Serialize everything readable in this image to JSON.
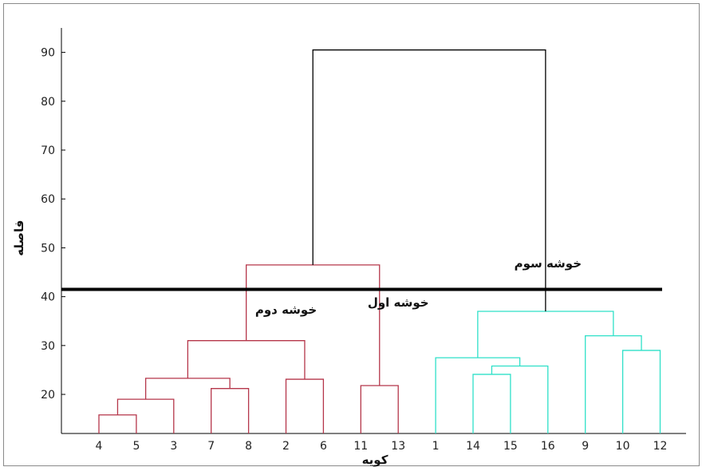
{
  "chart_data": {
    "type": "dendrogram",
    "xlabel": "کویه",
    "ylabel": "فاصله",
    "ylim": [
      12,
      95
    ],
    "yticks": [
      20,
      30,
      40,
      50,
      60,
      70,
      80,
      90
    ],
    "leaf_order": [
      "4",
      "5",
      "3",
      "7",
      "8",
      "2",
      "6",
      "11",
      "13",
      "1",
      "14",
      "15",
      "16",
      "9",
      "10",
      "12"
    ],
    "cut_height": 41.5,
    "colors": {
      "cluster_red": "#b5364a",
      "cluster_cyan": "#2ee0c8",
      "root": "#000000",
      "cut_line": "#000000"
    },
    "merges": [
      {
        "id": "m1",
        "children": [
          "4",
          "5"
        ],
        "height": 15.8,
        "color": "cluster_red"
      },
      {
        "id": "m2",
        "children": [
          "m1",
          "3"
        ],
        "height": 19.0,
        "color": "cluster_red"
      },
      {
        "id": "m3",
        "children": [
          "7",
          "8"
        ],
        "height": 21.2,
        "color": "cluster_red"
      },
      {
        "id": "m4",
        "children": [
          "m2",
          "m3"
        ],
        "height": 23.3,
        "color": "cluster_red"
      },
      {
        "id": "m5",
        "children": [
          "2",
          "6"
        ],
        "height": 23.1,
        "color": "cluster_red"
      },
      {
        "id": "m6",
        "children": [
          "m4",
          "m5"
        ],
        "height": 31.0,
        "color": "cluster_red"
      },
      {
        "id": "m7",
        "children": [
          "11",
          "13"
        ],
        "height": 21.8,
        "color": "cluster_red"
      },
      {
        "id": "m8",
        "children": [
          "m6",
          "m7"
        ],
        "height": 46.5,
        "color": "cluster_red"
      },
      {
        "id": "m9",
        "children": [
          "14",
          "15"
        ],
        "height": 24.1,
        "color": "cluster_cyan"
      },
      {
        "id": "m10",
        "children": [
          "m9",
          "16"
        ],
        "height": 25.8,
        "color": "cluster_cyan"
      },
      {
        "id": "m11",
        "children": [
          "1",
          "m10"
        ],
        "height": 27.5,
        "color": "cluster_cyan"
      },
      {
        "id": "m12",
        "children": [
          "10",
          "12"
        ],
        "height": 29.0,
        "color": "cluster_cyan"
      },
      {
        "id": "m13",
        "children": [
          "9",
          "m12"
        ],
        "height": 32.0,
        "color": "cluster_cyan"
      },
      {
        "id": "m14",
        "children": [
          "m11",
          "m13"
        ],
        "height": 37.0,
        "color": "cluster_cyan"
      },
      {
        "id": "m15",
        "children": [
          "m8",
          "m14"
        ],
        "height": 90.5,
        "color": "root"
      }
    ],
    "annotations": [
      {
        "text": "خوشه اول",
        "x_leaf": "13",
        "y": 38.0
      },
      {
        "text": "خوشه دوم",
        "x_leaf": "2",
        "y": 36.5
      },
      {
        "text": "خوشه سوم",
        "x_leaf": "16",
        "y": 46.0
      }
    ]
  }
}
